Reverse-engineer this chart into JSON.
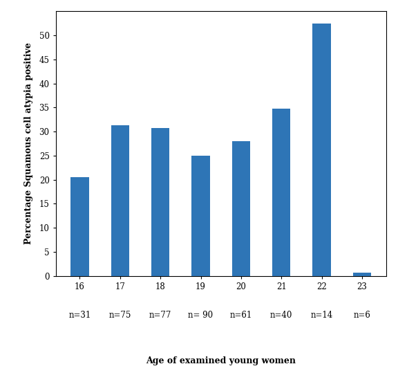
{
  "ages": [
    16,
    17,
    18,
    19,
    20,
    21,
    22,
    23
  ],
  "values": [
    20.6,
    31.3,
    30.7,
    25.0,
    28.0,
    34.8,
    52.5,
    0.7
  ],
  "n_labels": [
    "n=31",
    "n=75",
    "n=77",
    "n= 90",
    "n=61",
    "n=40",
    "n=14",
    "n=6"
  ],
  "bar_color": "#2E75B6",
  "xlabel": "Age of examined young women",
  "ylabel": "Percentage Squamous cell atypia positive",
  "ylim": [
    0,
    55
  ],
  "yticks": [
    0,
    5,
    10,
    15,
    20,
    25,
    30,
    35,
    40,
    45,
    50
  ],
  "background_color": "#ffffff",
  "bar_width": 0.45,
  "xlabel_fontsize": 9,
  "ylabel_fontsize": 9,
  "tick_fontsize": 8.5,
  "n_label_fontsize": 8.5
}
